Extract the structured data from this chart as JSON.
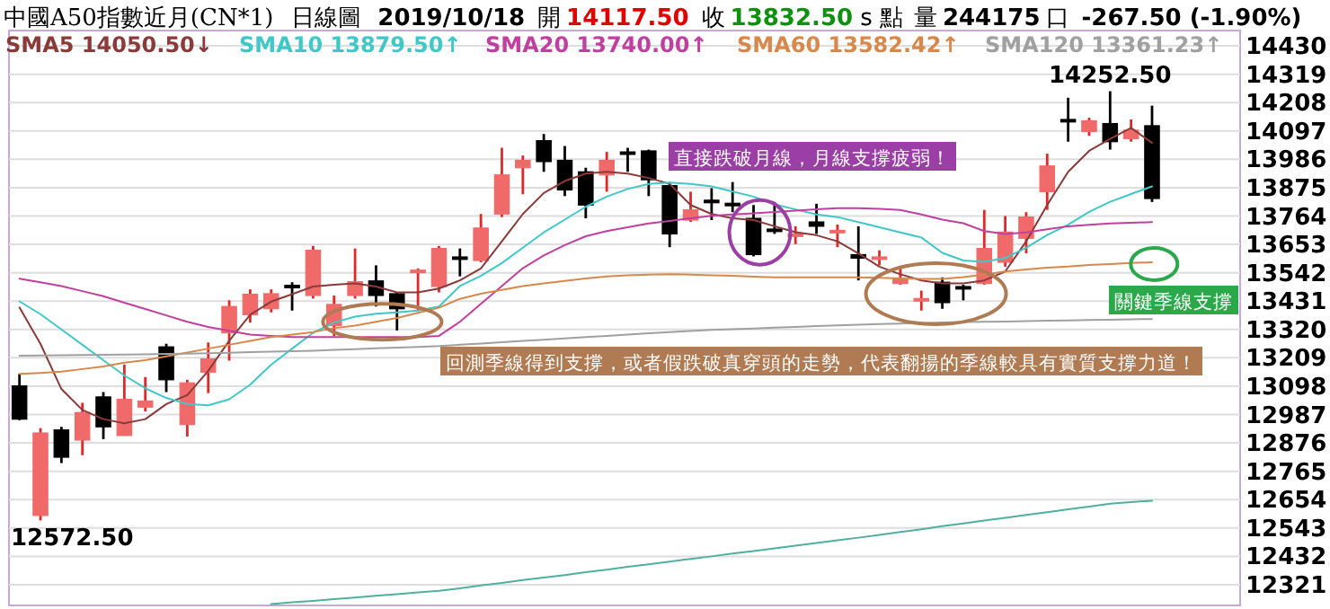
{
  "chart_data": {
    "type": "candlestick",
    "title": "中國A50指數近月(CN*1)",
    "subtitle": "日線圖",
    "categories": [
      null,
      null,
      null,
      null,
      null,
      null,
      null,
      null,
      null,
      null,
      null,
      null,
      null,
      null,
      null,
      null,
      null,
      null,
      null,
      null,
      null,
      null,
      null,
      null,
      null,
      null,
      null,
      null,
      null,
      null,
      null,
      null,
      null,
      null,
      null,
      null,
      null,
      null,
      null,
      null,
      null,
      null,
      null,
      null,
      null,
      null,
      null,
      null,
      null,
      null,
      null,
      null,
      null,
      null,
      null
    ],
    "ohlc": [
      [
        13099,
        13146,
        12965,
        12969
      ],
      [
        12592,
        12934,
        12572.5,
        12915
      ],
      [
        12927,
        12939,
        12797,
        12820
      ],
      [
        12887,
        13033,
        12828,
        12995
      ],
      [
        13056,
        13075,
        12891,
        12939
      ],
      [
        12905,
        13182,
        12905,
        13047
      ],
      [
        13016,
        13134,
        12999,
        13040
      ],
      [
        13252,
        13264,
        13075,
        13123
      ],
      [
        12948,
        13123,
        12901,
        13111
      ],
      [
        13153,
        13269,
        13071,
        13205
      ],
      [
        13307,
        13434,
        13198,
        13410
      ],
      [
        13378,
        13477,
        13347,
        13458
      ],
      [
        13401,
        13477,
        13387,
        13460
      ],
      [
        13493,
        13505,
        13394,
        13486
      ],
      [
        13453,
        13647,
        13441,
        13630
      ],
      [
        13335,
        13453,
        13293,
        13418
      ],
      [
        13453,
        13637,
        13441,
        13507
      ],
      [
        13510,
        13571,
        13410,
        13453
      ],
      [
        13460,
        13465,
        13316,
        13401
      ],
      [
        13547,
        13559,
        13394,
        13552
      ],
      [
        13488,
        13647,
        13465,
        13637
      ],
      [
        13604,
        13637,
        13528,
        13599
      ],
      [
        13590,
        13772,
        13583,
        13717
      ],
      [
        13772,
        14031,
        13760,
        13925
      ],
      [
        13953,
        14001,
        13849,
        13982
      ],
      [
        14059,
        14085,
        13937,
        13977
      ],
      [
        13982,
        14038,
        13842,
        13866
      ],
      [
        13937,
        13953,
        13755,
        13807
      ],
      [
        13925,
        14015,
        13859,
        13982
      ],
      [
        14015,
        14031,
        13937,
        14010
      ],
      [
        14019,
        14024,
        13842,
        13906
      ],
      [
        13883,
        13897,
        13642,
        13694
      ],
      [
        13748,
        13859,
        13741,
        13788
      ],
      [
        13826,
        13873,
        13748,
        13816
      ],
      [
        13814,
        13897,
        13779,
        13807
      ],
      [
        13755,
        13807,
        13606,
        13613
      ],
      [
        13713,
        13819,
        13694,
        13706
      ],
      [
        13689,
        13724,
        13654,
        13694
      ],
      [
        13741,
        13812,
        13694,
        13724
      ],
      [
        13701,
        13731,
        13642,
        13708
      ],
      [
        13613,
        13724,
        13512,
        13599
      ],
      [
        13599,
        13630,
        13571,
        13604
      ],
      [
        13500,
        13559,
        13495,
        13519
      ],
      [
        13434,
        13472,
        13394,
        13441
      ],
      [
        13505,
        13524,
        13401,
        13425
      ],
      [
        13488,
        13495,
        13434,
        13481
      ],
      [
        13500,
        13788,
        13495,
        13637
      ],
      [
        13583,
        13764,
        13566,
        13701
      ],
      [
        13677,
        13779,
        13618,
        13760
      ],
      [
        13859,
        14008,
        13788,
        13960
      ],
      [
        14142,
        14227,
        14055,
        14137
      ],
      [
        14095,
        14149,
        14078,
        14137
      ],
      [
        14126,
        14252.5,
        14024,
        14055
      ],
      [
        14067,
        14142,
        14055,
        14100
      ],
      [
        14117.5,
        14196,
        13819,
        13832.5
      ]
    ],
    "colors": [
      "#000000",
      "#f06a6a",
      "#000000",
      "#f06a6a",
      "#000000",
      "#f06a6a",
      "#f06a6a",
      "#000000",
      "#f06a6a",
      "#f06a6a",
      "#f06a6a",
      "#f06a6a",
      "#f06a6a",
      "#000000",
      "#f06a6a",
      "#f06a6a",
      "#f06a6a",
      "#000000",
      "#000000",
      "#f06a6a",
      "#f06a6a",
      "#000000",
      "#f06a6a",
      "#f06a6a",
      "#f06a6a",
      "#000000",
      "#000000",
      "#000000",
      "#f06a6a",
      "#000000",
      "#000000",
      "#000000",
      "#f06a6a",
      "#000000",
      "#000000",
      "#000000",
      "#000000",
      "#f06a6a",
      "#000000",
      "#f06a6a",
      "#000000",
      "#f06a6a",
      "#f06a6a",
      "#f06a6a",
      "#000000",
      "#000000",
      "#f06a6a",
      "#f06a6a",
      "#f06a6a",
      "#f06a6a",
      "#000000",
      "#f06a6a",
      "#000000",
      "#f06a6a",
      "#000000"
    ],
    "series": [
      {
        "type": "line",
        "name": "SMA5 14050.50↓",
        "color": "#8b3a3a",
        "values": [
          13406,
          13264,
          13087,
          13005,
          12969,
          12953,
          12969,
          13028,
          13063,
          13158,
          13276,
          13378,
          13429,
          13458,
          13488,
          13495,
          13500,
          13488,
          13465,
          13465,
          13480,
          13512,
          13559,
          13665,
          13772,
          13854,
          13901,
          13930,
          13937,
          13930,
          13913,
          13890,
          13807,
          13772,
          13755,
          13748,
          13724,
          13701,
          13689,
          13665,
          13618,
          13566,
          13536,
          13512,
          13500,
          13500,
          13512,
          13547,
          13665,
          13807,
          13937,
          14019,
          14066,
          14109,
          14050
        ]
      },
      {
        "type": "line",
        "name": "SMA10 13879.50↑",
        "color": "#40c8c8",
        "values": [
          13430,
          13380,
          13320,
          13260,
          13200,
          13140,
          13090,
          13052,
          13028,
          13023,
          13047,
          13104,
          13182,
          13245,
          13307,
          13347,
          13370,
          13382,
          13387,
          13394,
          13410,
          13490,
          13530,
          13580,
          13640,
          13700,
          13750,
          13800,
          13840,
          13870,
          13890,
          13895,
          13890,
          13880,
          13860,
          13840,
          13810,
          13790,
          13770,
          13760,
          13740,
          13720,
          13700,
          13680,
          13620,
          13590,
          13585,
          13600,
          13640,
          13690,
          13730,
          13780,
          13820,
          13850,
          13880
        ]
      },
      {
        "type": "line",
        "name": "SMA20 13740.00↑",
        "color": "#c040a0",
        "values": [
          13519,
          13505,
          13490,
          13470,
          13450,
          13425,
          13400,
          13375,
          13350,
          13330,
          13315,
          13300,
          13295,
          13290,
          13290,
          13290,
          13290,
          13290,
          13290,
          13290,
          13295,
          13350,
          13420,
          13490,
          13560,
          13610,
          13650,
          13685,
          13705,
          13720,
          13735,
          13745,
          13755,
          13765,
          13770,
          13775,
          13780,
          13785,
          13790,
          13795,
          13795,
          13792,
          13788,
          13770,
          13750,
          13736,
          13705,
          13694,
          13700,
          13712,
          13724,
          13730,
          13735,
          13738,
          13740
        ]
      },
      {
        "type": "line",
        "name": "SMA60 13582.42↑",
        "color": "#d8884a",
        "values": [
          13146,
          13150,
          13155,
          13165,
          13175,
          13190,
          13200,
          13215,
          13230,
          13245,
          13260,
          13275,
          13290,
          13300,
          13310,
          13325,
          13335,
          13350,
          13365,
          13385,
          13405,
          13440,
          13460,
          13475,
          13490,
          13500,
          13510,
          13520,
          13528,
          13532,
          13535,
          13536,
          13535,
          13532,
          13530,
          13527,
          13524,
          13524,
          13524,
          13524,
          13524,
          13522,
          13520,
          13518,
          13518,
          13525,
          13535,
          13547,
          13555,
          13562,
          13566,
          13572,
          13576,
          13580,
          13583
        ]
      },
      {
        "type": "line",
        "name": "SMA120 13361.23↑",
        "color": "#a0a0a0",
        "values": [
          13217,
          13218,
          13219,
          13220,
          13221,
          13222,
          13223,
          13224,
          13225,
          13227,
          13229,
          13231,
          13233,
          13235,
          13237,
          13240,
          13243,
          13246,
          13249,
          13252,
          13255,
          13260,
          13265,
          13270,
          13275,
          13280,
          13285,
          13290,
          13295,
          13300,
          13305,
          13310,
          13314,
          13318,
          13321,
          13324,
          13327,
          13330,
          13333,
          13336,
          13339,
          13341,
          13343,
          13345,
          13347,
          13349,
          13350,
          13351,
          13353,
          13354,
          13355,
          13357,
          13358,
          13360,
          13361
        ]
      },
      {
        "type": "line",
        "color": "#50b0a0",
        "values": [
          null,
          null,
          null,
          null,
          null,
          null,
          null,
          null,
          null,
          null,
          null,
          null,
          12245,
          12252,
          12258,
          12265,
          12271,
          12278,
          12284,
          12291,
          12297,
          12307,
          12318,
          12328,
          12339,
          12349,
          12359,
          12370,
          12380,
          12391,
          12401,
          12411,
          12422,
          12432,
          12443,
          12453,
          12463,
          12474,
          12484,
          12495,
          12505,
          12516,
          12527,
          12538,
          12550,
          12561,
          12572,
          12583,
          12594,
          12605,
          12616,
          12627,
          12638,
          12644,
          12650
        ]
      }
    ],
    "ylim": [
      12240,
      14490
    ],
    "yticks": [
      14430,
      14319,
      14208,
      14097,
      13986,
      13875,
      13764,
      13653,
      13542,
      13431,
      13320,
      13209,
      13098,
      12987,
      12876,
      12765,
      12654,
      12543,
      12432,
      12321
    ],
    "grid": "y",
    "tick_labels": "y",
    "legend": "top",
    "annotations": [
      "2019/10/18",
      "開",
      "14117.50",
      "收",
      "13832.50",
      "s 點",
      "量",
      "244175",
      "口",
      "-267.50 (-1.90%)",
      {
        "text": "14252.50",
        "y": 14252.5
      },
      "12572.50",
      "直接跌破月線，月線支撐疲弱！",
      "回測季線得到支撐，或者假跌破真穿頭的走勢，代表翻揚的季線較具有實質支撐力道！",
      "關鍵季線支撐"
    ]
  }
}
